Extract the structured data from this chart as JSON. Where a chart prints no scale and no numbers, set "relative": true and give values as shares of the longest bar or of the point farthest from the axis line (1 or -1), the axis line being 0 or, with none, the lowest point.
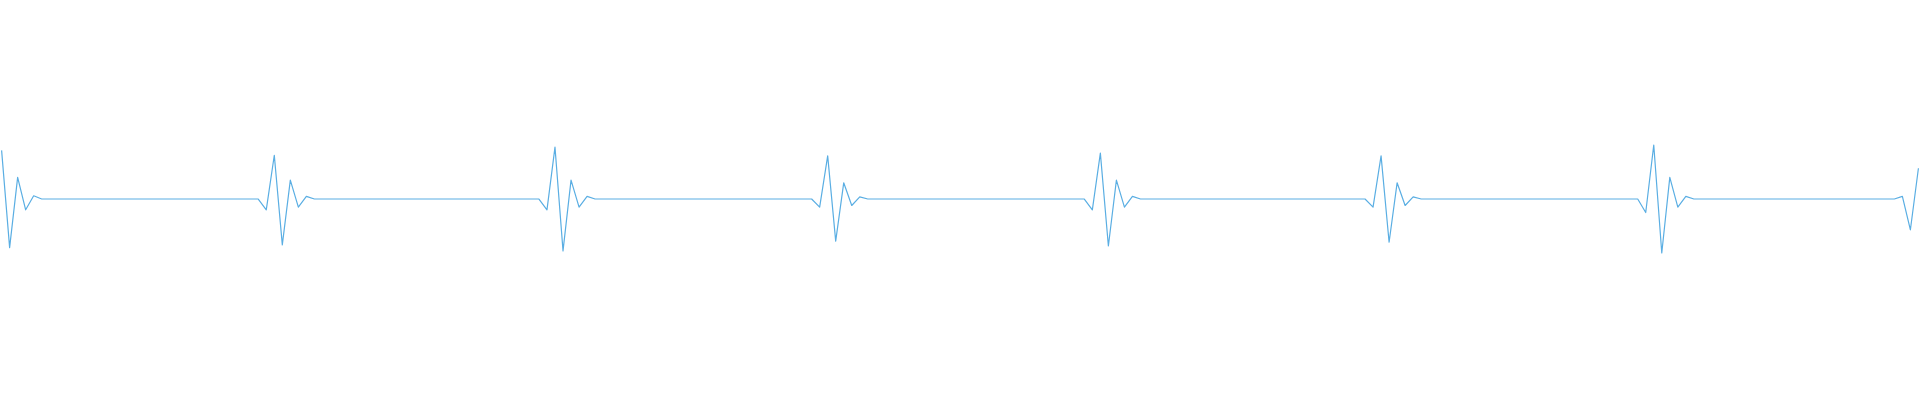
{
  "chart_data": {
    "type": "line",
    "relative": true,
    "color": "#5aaee3",
    "categories": [
      null,
      null,
      null,
      null,
      null,
      null,
      null,
      null,
      null,
      null,
      null,
      null,
      null,
      null,
      null,
      null,
      null,
      null,
      null,
      null,
      null,
      null,
      null,
      null,
      null,
      null,
      null,
      null,
      null,
      null,
      null,
      null,
      null,
      null,
      null,
      null,
      null,
      null,
      null,
      null,
      null,
      null,
      null,
      null,
      null,
      null,
      null,
      null,
      null,
      null,
      null,
      null,
      null,
      null,
      null,
      null,
      null,
      null,
      null,
      null,
      null,
      null,
      null,
      null,
      null,
      null,
      null,
      null,
      null,
      null,
      null,
      null,
      null,
      null,
      null,
      null,
      null,
      null,
      null,
      null,
      null,
      null,
      null,
      null,
      null,
      null,
      null,
      null,
      null,
      null,
      null,
      null,
      null,
      null,
      null,
      null,
      null,
      null,
      null,
      null,
      null,
      null,
      null,
      null,
      null,
      null,
      null,
      null,
      null,
      null,
      null,
      null,
      null,
      null,
      null,
      null,
      null,
      null,
      null,
      null,
      null,
      null,
      null,
      null,
      null,
      null,
      null,
      null,
      null,
      null,
      null,
      null,
      null,
      null,
      null,
      null,
      null,
      null,
      null,
      null,
      null,
      null,
      null,
      null,
      null,
      null,
      null,
      null,
      null,
      null,
      null,
      null,
      null,
      null,
      null,
      null,
      null,
      null,
      null,
      null,
      null,
      null,
      null,
      null,
      null,
      null,
      null,
      null,
      null,
      null,
      null,
      null,
      null,
      null,
      null,
      null,
      null,
      null,
      null,
      null,
      null,
      null,
      null,
      null,
      null,
      null,
      null,
      null,
      null,
      null,
      null,
      null,
      null,
      null,
      null,
      null,
      null,
      null,
      null,
      null,
      null,
      null,
      null,
      null,
      null,
      null,
      null,
      null,
      null,
      null,
      null,
      null,
      null,
      null,
      null,
      null,
      null,
      null,
      null,
      null,
      null,
      null,
      null,
      null,
      null,
      null,
      null,
      null,
      null,
      null,
      null,
      null,
      null,
      null,
      null,
      null,
      null,
      null,
      null,
      null
    ],
    "values": [
      0.95,
      0.05,
      0.7,
      0.4,
      0.53,
      0.5,
      0.5,
      0.5,
      0.5,
      0.5,
      0.5,
      0.5,
      0.5,
      0.5,
      0.5,
      0.5,
      0.5,
      0.5,
      0.5,
      0.5,
      0.5,
      0.5,
      0.5,
      0.5,
      0.5,
      0.5,
      0.5,
      0.5,
      0.5,
      0.5,
      0.5,
      0.5,
      0.5,
      0.4,
      0.905,
      0.075,
      0.675,
      0.425,
      0.525,
      0.5,
      0.5,
      0.5,
      0.5,
      0.5,
      0.5,
      0.5,
      0.5,
      0.5,
      0.5,
      0.5,
      0.5,
      0.5,
      0.5,
      0.5,
      0.5,
      0.5,
      0.5,
      0.5,
      0.5,
      0.5,
      0.5,
      0.5,
      0.5,
      0.5,
      0.5,
      0.5,
      0.5,
      0.5,
      0.4,
      0.98,
      0.02,
      0.675,
      0.425,
      0.525,
      0.5,
      0.5,
      0.5,
      0.5,
      0.5,
      0.5,
      0.5,
      0.5,
      0.5,
      0.5,
      0.5,
      0.5,
      0.5,
      0.5,
      0.5,
      0.5,
      0.5,
      0.5,
      0.5,
      0.5,
      0.5,
      0.5,
      0.5,
      0.5,
      0.5,
      0.5,
      0.5,
      0.5,
      0.425,
      0.9,
      0.11,
      0.65,
      0.44,
      0.52,
      0.5,
      0.5,
      0.5,
      0.5,
      0.5,
      0.5,
      0.5,
      0.5,
      0.5,
      0.5,
      0.5,
      0.5,
      0.5,
      0.5,
      0.5,
      0.5,
      0.5,
      0.5,
      0.5,
      0.5,
      0.5,
      0.5,
      0.5,
      0.5,
      0.5,
      0.5,
      0.5,
      0.5,
      0.4,
      0.925,
      0.065,
      0.675,
      0.425,
      0.525,
      0.5,
      0.5,
      0.5,
      0.5,
      0.5,
      0.5,
      0.5,
      0.5,
      0.5,
      0.5,
      0.5,
      0.5,
      0.5,
      0.5,
      0.5,
      0.5,
      0.5,
      0.5,
      0.5,
      0.5,
      0.5,
      0.5,
      0.5,
      0.5,
      0.5,
      0.5,
      0.5,
      0.5,
      0.5,
      0.425,
      0.9,
      0.1,
      0.65,
      0.44,
      0.52,
      0.5,
      0.5,
      0.5,
      0.5,
      0.5,
      0.5,
      0.5,
      0.5,
      0.5,
      0.5,
      0.5,
      0.5,
      0.5,
      0.5,
      0.5,
      0.5,
      0.5,
      0.5,
      0.5,
      0.5,
      0.5,
      0.5,
      0.5,
      0.5,
      0.5,
      0.5,
      0.5,
      0.5,
      0.375,
      1,
      0,
      0.7,
      0.425,
      0.525,
      0.5,
      0.5,
      0.5,
      0.5,
      0.5,
      0.5,
      0.5,
      0.5,
      0.5,
      0.5,
      0.5,
      0.5,
      0.5,
      0.5,
      0.5,
      0.5,
      0.5,
      0.5,
      0.5,
      0.5,
      0.5,
      0.5,
      0.5,
      0.5,
      0.5,
      0.5,
      0.525,
      0.215,
      0.785
    ]
  }
}
